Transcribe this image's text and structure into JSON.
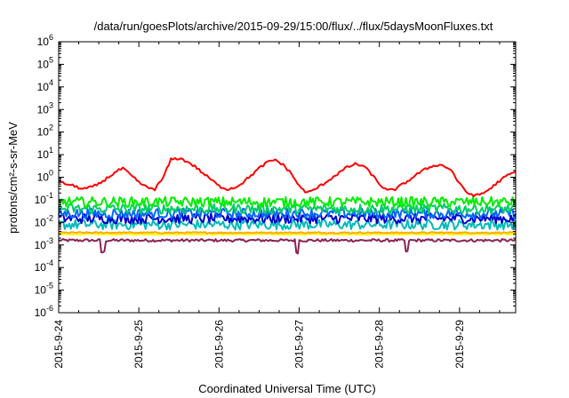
{
  "chart_data": {
    "type": "line",
    "title": "/data/run/goesPlots/archive/2015-09-29/15:00/flux/../flux/5daysMoonFluxes.txt",
    "xlabel": "Coordinated Universal Time (UTC)",
    "ylabel": "protons/cm²-s-sr-MeV",
    "yscale": "log",
    "ylim": [
      1e-06,
      1000000.0
    ],
    "xlim_days": [
      0,
      5.7
    ],
    "x_start": "2015-9-24",
    "y_ticks": [
      {
        "base": "10",
        "exp": "-6"
      },
      {
        "base": "10",
        "exp": "-5"
      },
      {
        "base": "10",
        "exp": "-4"
      },
      {
        "base": "10",
        "exp": "-3"
      },
      {
        "base": "10",
        "exp": "-2"
      },
      {
        "base": "10",
        "exp": "-1"
      },
      {
        "base": "10",
        "exp": "0"
      },
      {
        "base": "10",
        "exp": "1"
      },
      {
        "base": "10",
        "exp": "2"
      },
      {
        "base": "10",
        "exp": "3"
      },
      {
        "base": "10",
        "exp": "4"
      },
      {
        "base": "10",
        "exp": "5"
      },
      {
        "base": "10",
        "exp": "6"
      }
    ],
    "x_ticks": [
      "2015-9-24",
      "2015-9-25",
      "2015-9-26",
      "2015-9-27",
      "2015-9-28",
      "2015-9-29"
    ],
    "grid": false,
    "legend": "none",
    "series": [
      {
        "color": "#ff0000",
        "x": [
          "2015-09-24 00:00",
          "2015-09-24 02:24",
          "2015-09-24 04:48",
          "2015-09-24 07:12",
          "2015-09-24 09:36",
          "2015-09-24 12:00",
          "2015-09-24 14:24",
          "2015-09-24 16:48",
          "2015-09-24 19:12",
          "2015-09-24 21:36",
          "2015-09-25 00:00",
          "2015-09-25 02:24",
          "2015-09-25 04:48",
          "2015-09-25 07:12",
          "2015-09-25 09:36",
          "2015-09-25 12:00",
          "2015-09-25 14:24",
          "2015-09-25 16:48",
          "2015-09-25 19:12",
          "2015-09-25 21:36",
          "2015-09-26 00:00",
          "2015-09-26 02:24",
          "2015-09-26 04:48",
          "2015-09-26 07:12",
          "2015-09-26 09:36",
          "2015-09-26 12:00",
          "2015-09-26 14:24",
          "2015-09-26 16:48",
          "2015-09-26 19:12",
          "2015-09-26 21:36",
          "2015-09-27 00:00",
          "2015-09-27 02:24",
          "2015-09-27 04:48",
          "2015-09-27 07:12",
          "2015-09-27 09:36",
          "2015-09-27 12:00",
          "2015-09-27 14:24",
          "2015-09-27 16:48",
          "2015-09-27 19:12",
          "2015-09-27 21:36",
          "2015-09-28 00:00",
          "2015-09-28 02:24",
          "2015-09-28 04:48",
          "2015-09-28 07:12",
          "2015-09-28 09:36",
          "2015-09-28 12:00",
          "2015-09-28 14:24",
          "2015-09-28 16:48",
          "2015-09-28 19:12",
          "2015-09-28 21:36",
          "2015-09-29 00:00",
          "2015-09-29 02:24",
          "2015-09-29 04:48",
          "2015-09-29 07:12",
          "2015-09-29 09:36",
          "2015-09-29 12:00",
          "2015-09-29 14:24",
          "2015-09-29 16:48"
        ],
        "y": [
          0.6,
          0.5,
          0.4,
          0.3,
          0.35,
          0.5,
          0.9,
          1.6,
          2.5,
          1.2,
          0.6,
          0.35,
          0.3,
          0.9,
          6.0,
          7.0,
          5.0,
          3.0,
          1.5,
          0.8,
          0.4,
          0.3,
          0.35,
          0.6,
          1.2,
          2.5,
          4.5,
          6.0,
          3.5,
          1.5,
          0.4,
          0.2,
          0.3,
          0.5,
          0.9,
          1.6,
          2.8,
          3.8,
          3.2,
          1.4,
          0.5,
          0.25,
          0.3,
          0.5,
          0.9,
          1.6,
          2.5,
          3.5,
          3.3,
          2.0,
          0.5,
          0.2,
          0.15,
          0.2,
          0.35,
          0.7,
          1.2,
          1.8
        ]
      },
      {
        "color": "#00ee00",
        "y_typical": 0.08
      },
      {
        "color": "#00cc66",
        "y_typical": 0.04
      },
      {
        "color": "#0066ff",
        "y_typical": 0.025
      },
      {
        "color": "#0000cc",
        "y_typical": 0.015
      },
      {
        "color": "#00bbbb",
        "y_typical": 0.008
      },
      {
        "color": "#ffff00",
        "y_typical": 0.003
      },
      {
        "color": "#ffaa00",
        "y_typical": 0.0035
      },
      {
        "color": "#8b2252",
        "y_typical": 0.0016
      }
    ]
  }
}
